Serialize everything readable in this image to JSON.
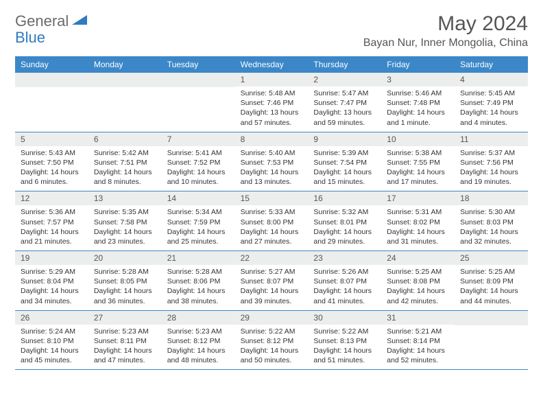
{
  "logo": {
    "general": "General",
    "blue": "Blue"
  },
  "title": "May 2024",
  "location": "Bayan Nur, Inner Mongolia, China",
  "colors": {
    "header_bg": "#3b87c8",
    "daynum_bg": "#eceded",
    "text_gray": "#555555",
    "body_text": "#333333",
    "logo_gray": "#6a6a6a",
    "logo_blue": "#2f7ac0"
  },
  "day_names": [
    "Sunday",
    "Monday",
    "Tuesday",
    "Wednesday",
    "Thursday",
    "Friday",
    "Saturday"
  ],
  "weeks": [
    [
      null,
      null,
      null,
      {
        "n": "1",
        "sr": "5:48 AM",
        "ss": "7:46 PM",
        "dl": "13 hours and 57 minutes."
      },
      {
        "n": "2",
        "sr": "5:47 AM",
        "ss": "7:47 PM",
        "dl": "13 hours and 59 minutes."
      },
      {
        "n": "3",
        "sr": "5:46 AM",
        "ss": "7:48 PM",
        "dl": "14 hours and 1 minute."
      },
      {
        "n": "4",
        "sr": "5:45 AM",
        "ss": "7:49 PM",
        "dl": "14 hours and 4 minutes."
      }
    ],
    [
      {
        "n": "5",
        "sr": "5:43 AM",
        "ss": "7:50 PM",
        "dl": "14 hours and 6 minutes."
      },
      {
        "n": "6",
        "sr": "5:42 AM",
        "ss": "7:51 PM",
        "dl": "14 hours and 8 minutes."
      },
      {
        "n": "7",
        "sr": "5:41 AM",
        "ss": "7:52 PM",
        "dl": "14 hours and 10 minutes."
      },
      {
        "n": "8",
        "sr": "5:40 AM",
        "ss": "7:53 PM",
        "dl": "14 hours and 13 minutes."
      },
      {
        "n": "9",
        "sr": "5:39 AM",
        "ss": "7:54 PM",
        "dl": "14 hours and 15 minutes."
      },
      {
        "n": "10",
        "sr": "5:38 AM",
        "ss": "7:55 PM",
        "dl": "14 hours and 17 minutes."
      },
      {
        "n": "11",
        "sr": "5:37 AM",
        "ss": "7:56 PM",
        "dl": "14 hours and 19 minutes."
      }
    ],
    [
      {
        "n": "12",
        "sr": "5:36 AM",
        "ss": "7:57 PM",
        "dl": "14 hours and 21 minutes."
      },
      {
        "n": "13",
        "sr": "5:35 AM",
        "ss": "7:58 PM",
        "dl": "14 hours and 23 minutes."
      },
      {
        "n": "14",
        "sr": "5:34 AM",
        "ss": "7:59 PM",
        "dl": "14 hours and 25 minutes."
      },
      {
        "n": "15",
        "sr": "5:33 AM",
        "ss": "8:00 PM",
        "dl": "14 hours and 27 minutes."
      },
      {
        "n": "16",
        "sr": "5:32 AM",
        "ss": "8:01 PM",
        "dl": "14 hours and 29 minutes."
      },
      {
        "n": "17",
        "sr": "5:31 AM",
        "ss": "8:02 PM",
        "dl": "14 hours and 31 minutes."
      },
      {
        "n": "18",
        "sr": "5:30 AM",
        "ss": "8:03 PM",
        "dl": "14 hours and 32 minutes."
      }
    ],
    [
      {
        "n": "19",
        "sr": "5:29 AM",
        "ss": "8:04 PM",
        "dl": "14 hours and 34 minutes."
      },
      {
        "n": "20",
        "sr": "5:28 AM",
        "ss": "8:05 PM",
        "dl": "14 hours and 36 minutes."
      },
      {
        "n": "21",
        "sr": "5:28 AM",
        "ss": "8:06 PM",
        "dl": "14 hours and 38 minutes."
      },
      {
        "n": "22",
        "sr": "5:27 AM",
        "ss": "8:07 PM",
        "dl": "14 hours and 39 minutes."
      },
      {
        "n": "23",
        "sr": "5:26 AM",
        "ss": "8:07 PM",
        "dl": "14 hours and 41 minutes."
      },
      {
        "n": "24",
        "sr": "5:25 AM",
        "ss": "8:08 PM",
        "dl": "14 hours and 42 minutes."
      },
      {
        "n": "25",
        "sr": "5:25 AM",
        "ss": "8:09 PM",
        "dl": "14 hours and 44 minutes."
      }
    ],
    [
      {
        "n": "26",
        "sr": "5:24 AM",
        "ss": "8:10 PM",
        "dl": "14 hours and 45 minutes."
      },
      {
        "n": "27",
        "sr": "5:23 AM",
        "ss": "8:11 PM",
        "dl": "14 hours and 47 minutes."
      },
      {
        "n": "28",
        "sr": "5:23 AM",
        "ss": "8:12 PM",
        "dl": "14 hours and 48 minutes."
      },
      {
        "n": "29",
        "sr": "5:22 AM",
        "ss": "8:12 PM",
        "dl": "14 hours and 50 minutes."
      },
      {
        "n": "30",
        "sr": "5:22 AM",
        "ss": "8:13 PM",
        "dl": "14 hours and 51 minutes."
      },
      {
        "n": "31",
        "sr": "5:21 AM",
        "ss": "8:14 PM",
        "dl": "14 hours and 52 minutes."
      },
      null
    ]
  ],
  "labels": {
    "sunrise": "Sunrise:",
    "sunset": "Sunset:",
    "daylight": "Daylight:"
  }
}
